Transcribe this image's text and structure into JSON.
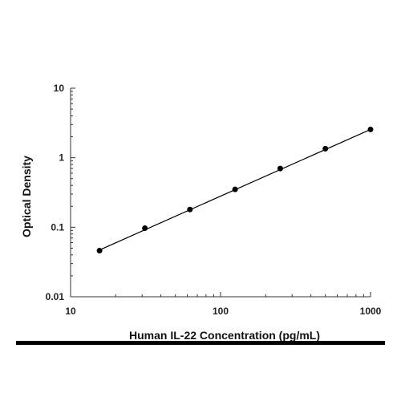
{
  "chart_data": {
    "type": "scatter",
    "title": "",
    "xlabel": "Human IL-22 Concentration (pg/mL)",
    "ylabel": "Optical Density",
    "xscale": "log",
    "yscale": "log",
    "xlim": [
      10,
      1000
    ],
    "ylim": [
      0.01,
      10
    ],
    "xticks": [
      {
        "value": 10,
        "label": "10"
      },
      {
        "value": 100,
        "label": "100"
      },
      {
        "value": 1000,
        "label": "1000"
      }
    ],
    "yticks": [
      {
        "value": 0.01,
        "label": "0.01"
      },
      {
        "value": 0.1,
        "label": "0.1"
      },
      {
        "value": 1,
        "label": "1"
      },
      {
        "value": 10,
        "label": "10"
      }
    ],
    "grid": false,
    "legend": "none",
    "series": [
      {
        "x": [
          15.6,
          31.3,
          62.5,
          125,
          250,
          500,
          1000
        ],
        "y": [
          0.046,
          0.097,
          0.18,
          0.35,
          0.7,
          1.35,
          2.55
        ]
      }
    ],
    "fit_line": {
      "x": [
        15.6,
        1000
      ],
      "y": [
        0.047,
        2.55
      ]
    },
    "colors": {
      "points": "#000000",
      "line": "#000000",
      "axes": "#333333",
      "rule": "#000000"
    }
  }
}
